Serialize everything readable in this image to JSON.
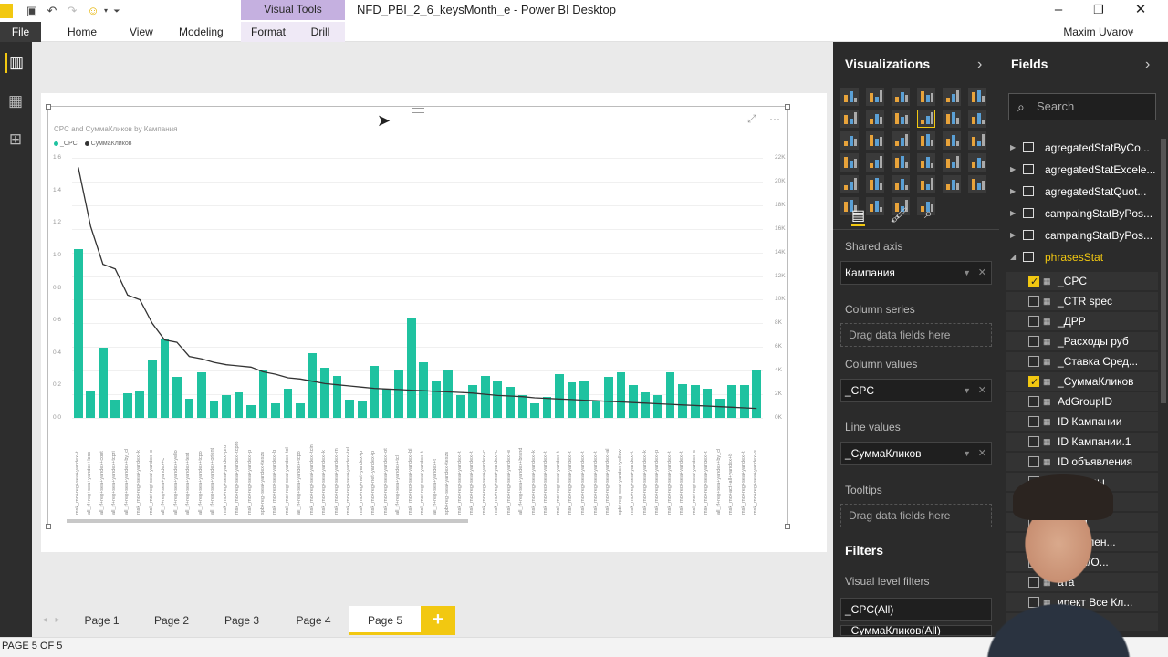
{
  "window": {
    "title": "NFD_PBI_2_6_keysMonth_e - Power BI Desktop",
    "context_tab": "Visual Tools",
    "user": "Maxim Uvarov",
    "minimize": "–",
    "restore": "❐",
    "close": "✕"
  },
  "ribbon": {
    "file": "File",
    "tabs": [
      "Home",
      "View",
      "Modeling",
      "Format",
      "Drill"
    ]
  },
  "chart_data": {
    "type": "bar",
    "title": "CPC and  СуммаКликов by Кампания",
    "legend": [
      "_CPC",
      "СуммаКликов"
    ],
    "legend_position": "top-left",
    "y_left_ticks": [
      "1.6",
      "1.4",
      "1.2",
      "1.0",
      "0.8",
      "0.6",
      "0.4",
      "0.2",
      "0.0"
    ],
    "y_right_ticks": [
      "22K",
      "20K",
      "18K",
      "16K",
      "14K",
      "12K",
      "10K",
      "8K",
      "6K",
      "4K",
      "2K",
      "0K"
    ],
    "ylim_left": [
      0,
      1.6
    ],
    "ylim_right": [
      0,
      22000
    ],
    "series": [
      {
        "name": "_CPC",
        "type": "bar",
        "color": "#1fc2a0",
        "values": [
          1.04,
          0.17,
          0.43,
          0.11,
          0.15,
          0.17,
          0.36,
          0.49,
          0.25,
          0.12,
          0.28,
          0.1,
          0.14,
          0.16,
          0.08,
          0.29,
          0.09,
          0.18,
          0.09,
          0.4,
          0.31,
          0.26,
          0.11,
          0.1,
          0.32,
          0.18,
          0.3,
          0.62,
          0.34,
          0.23,
          0.29,
          0.14,
          0.2,
          0.26,
          0.23,
          0.19,
          0.14,
          0.09,
          0.13,
          0.27,
          0.22,
          0.23,
          0.1,
          0.25,
          0.28,
          0.2,
          0.16,
          0.14,
          0.28,
          0.21,
          0.2,
          0.18,
          0.12,
          0.2,
          0.2,
          0.29
        ]
      },
      {
        "name": "СуммаКликов",
        "type": "line",
        "color": "#333333",
        "values": [
          21200,
          16200,
          13000,
          12600,
          10400,
          10000,
          8000,
          6600,
          6400,
          5200,
          5000,
          4700,
          4500,
          4400,
          4300,
          3900,
          3700,
          3400,
          3300,
          3100,
          2900,
          2800,
          2700,
          2600,
          2500,
          2450,
          2400,
          2350,
          2300,
          2250,
          2200,
          2150,
          2100,
          2000,
          1900,
          1850,
          1800,
          1700,
          1650,
          1600,
          1550,
          1500,
          1450,
          1400,
          1350,
          1300,
          1250,
          1200,
          1150,
          1100,
          1050,
          1000,
          950,
          900,
          850,
          800
        ]
      }
    ],
    "categories": [
      "msk_mo+reg+sea+yandex+t",
      "all_rf+reg+sea+yandex+less",
      "all_rf+reg+sea+yandex+cont",
      "all_rf+reg+sea+yandex+tcpri",
      "all_rf+reg+sea+yandex+by_cl",
      "msk_mo+reg+sea+yandex+k",
      "msk_mo+reg+sea+yandex+c",
      "all_rf+reg+sea+yandex+c",
      "all_rf+reg+sea+yandex+yello",
      "all_rf+reg+sea+yandex+test",
      "all_rf+reg+sea+yandex+tcpo",
      "all_rf+reg+sea+yandex+orient",
      "msk_mo+reg+sea+yandex+pro",
      "msk_mo+reg+sea+yandex+tcpro",
      "msk_mo+reg+sea+yandex+p",
      "spb+reg+sea+yandex+teszs",
      "msk_mo+reg+sea+yandex+b",
      "msk_mo+reg+sea+yandex+tcl",
      "all_rf+reg+sea+yandex+tcpo",
      "msk_mo+reg+sea+yandex+tcin",
      "msk_mo+reg+sea+yandex+k",
      "msk_mo+reg+sea+yandex+m",
      "msk_mo+reg+sea+yandex+tel",
      "msk_mo+reg+net+yandex+p",
      "msk_mo+reg+net+yandex+p",
      "msk_mo+reg+sea+yandex+ot",
      "all_rf+reg+sea+yandex+tcl",
      "msk_mo+reg+sea+yandex+bl",
      "msk_mo+reg+sea+yandex+t",
      "all_rf+reg+sea+yandex+t",
      "spb+reg+sea+yandex+teszs",
      "msk_mo+reg+sea+yandex+t",
      "msk_mo+reg+sea+yandex+t",
      "msk_mo+reg+sea+yandex+c",
      "msk_mo+reg+sea+yandex+c",
      "msk_mo+reg+sea+yandex+e",
      "all_rf+reg+sea+yandex+brand",
      "msk_mo+reg+sea+yandex+k",
      "msk_mo+reg+sea+yandex+t",
      "msk_mo+reg+sea+yandex+t",
      "msk_mo+reg+sea+yandex+t",
      "msk_mo+reg+sea+yandex+t",
      "msk_mo+reg+sea+yandex+t",
      "msk_mo+reg+sea+yandex+al",
      "spb+reg+sea+yandex+yellow",
      "msk_mo+reg+sea+yandex+t",
      "msk_mo+reg+sea+yandex+k",
      "msk_mo+reg+sea+yandex+p",
      "msk_mo+reg+sea+yandex+t",
      "msk_mo+reg+sea+yandex+t",
      "msk_mo+reg+sea+yandex+s",
      "msk_mo+reg+sea+yandex+t",
      "all_rf+reg+sea+yandex+by_cl",
      "msk_mo+act+all+yandex+b",
      "msk_mo+reg+sea+yandex+t",
      "msk_mo+reg+sea+yandex+s"
    ]
  },
  "page_tabs": {
    "tabs": [
      "Page 1",
      "Page 2",
      "Page 3",
      "Page 4",
      "Page 5"
    ],
    "active": "Page 5",
    "add": "+"
  },
  "status": "PAGE 5 OF 5",
  "visualizations": {
    "header": "Visualizations",
    "shared_axis_label": "Shared axis",
    "shared_axis_value": "Кампания",
    "column_series_label": "Column series",
    "column_series_drop": "Drag data fields here",
    "column_values_label": "Column values",
    "column_values_value": "_CPC",
    "line_values_label": "Line values",
    "line_values_value": "_СуммаКликов",
    "tooltips_label": "Tooltips",
    "tooltips_drop": "Drag data fields here"
  },
  "filters": {
    "header": "Filters",
    "visual_level_label": "Visual level filters",
    "items": [
      "_CPC(All)",
      "_СуммаКликов(All)"
    ]
  },
  "fields": {
    "header": "Fields",
    "search_placeholder": "Search",
    "tables": [
      "agregatedStatByCo...",
      "agregatedStatExcele...",
      "agregatedStatQuot...",
      "campaingStatByPos...",
      "campaingStatByPos...",
      "phrasesStat"
    ],
    "items": [
      {
        "label": "_CPC",
        "checked": true
      },
      {
        "label": "_CTR spec",
        "checked": false
      },
      {
        "label": "_ДРР",
        "checked": false
      },
      {
        "label": "_Расходы руб",
        "checked": false
      },
      {
        "label": "_Ставка Сред...",
        "checked": false
      },
      {
        "label": "_СуммаКликов",
        "checked": true
      },
      {
        "label": "AdGroupID",
        "checked": false
      },
      {
        "label": "ID Кампании",
        "checked": false
      },
      {
        "label": "ID Кампании.1",
        "checked": false
      },
      {
        "label": "ID объявления",
        "checked": false
      },
      {
        "label": "ID Фразы",
        "checked": false
      },
      {
        "label": "gion",
        "checked": false
      },
      {
        "label": "geting",
        "checked": false
      },
      {
        "label": "объявлен...",
        "checked": false
      },
      {
        "label": "онная/О...",
        "checked": false
      },
      {
        "label": "ата",
        "checked": false
      },
      {
        "label": "ирект Все Кл...",
        "checked": false
      },
      {
        "label": "Все П...",
        "checked": false
      }
    ]
  }
}
